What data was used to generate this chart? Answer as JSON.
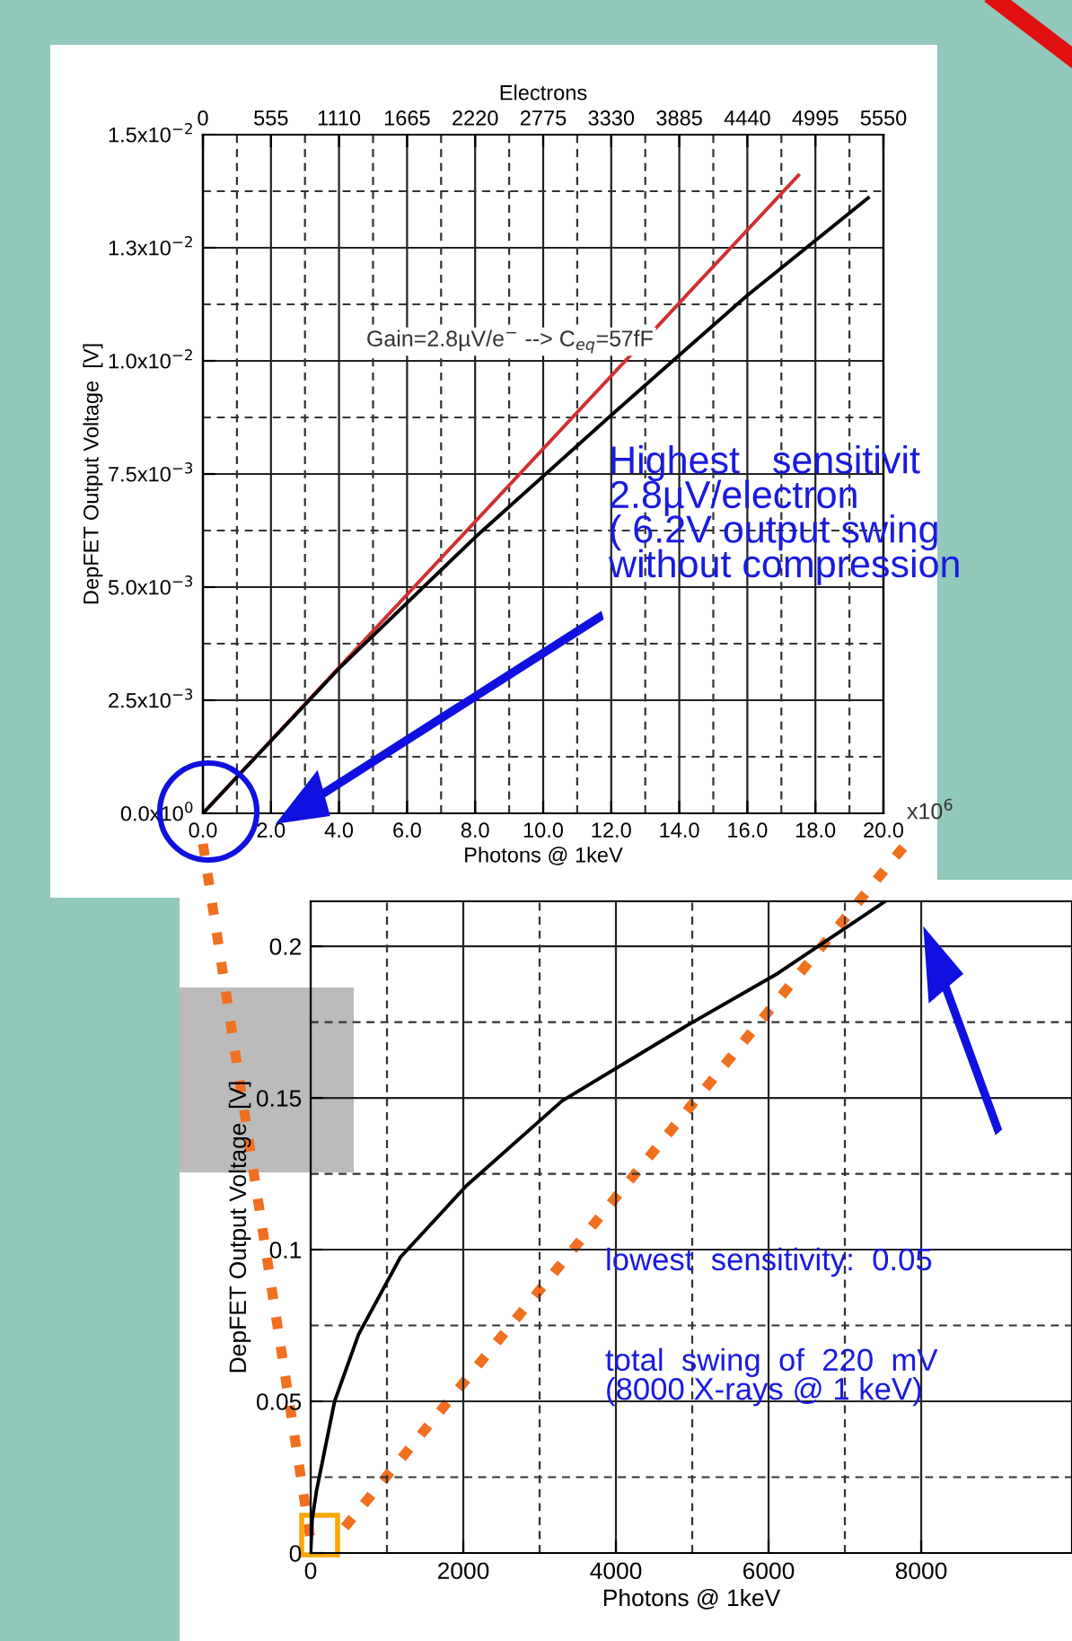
{
  "chart_data": [
    {
      "type": "line",
      "xlabel": "Photons @ 1keV",
      "ylabel": "DepFET Output Voltage  [V]",
      "x2label": "Electrons",
      "series": [
        {
          "color": "#d03030",
          "x": [
            0,
            17.5
          ],
          "values": [
            0,
            0.0141
          ]
        },
        {
          "color": "#000000",
          "x": [
            0,
            4,
            8,
            12,
            16,
            19.55
          ],
          "values": [
            0,
            0.0032,
            0.0061,
            0.0088,
            0.01145,
            0.0136
          ]
        }
      ],
      "xlim": [
        0,
        20
      ],
      "xticks": [
        {
          "value": 0,
          "label": "0.0"
        },
        {
          "value": 2,
          "label": "2.0"
        },
        {
          "value": 4,
          "label": "4.0"
        },
        {
          "value": 6,
          "label": "6.0"
        },
        {
          "value": 8,
          "label": "8.0"
        },
        {
          "value": 10,
          "label": "10.0"
        },
        {
          "value": 12,
          "label": "12.0"
        },
        {
          "value": 14,
          "label": "14.0"
        },
        {
          "value": 16,
          "label": "16.0"
        },
        {
          "value": 18,
          "label": "18.0"
        },
        {
          "value": 20,
          "label": "20.0"
        }
      ],
      "x2lim": [
        0,
        5550
      ],
      "x2ticks": [
        0,
        555,
        1110,
        1665,
        2220,
        2775,
        3330,
        3885,
        4440,
        4995,
        5550
      ],
      "ylim": [
        0,
        0.015
      ],
      "yticks": [
        {
          "value": 0,
          "label": "0.0x10$^{0}$"
        },
        {
          "value": 0.0025,
          "label": "2.5x10$^{−3}$"
        },
        {
          "value": 0.005,
          "label": "5.0x10$^{−3}$"
        },
        {
          "value": 0.0075,
          "label": "7.5x10$^{−3}$"
        },
        {
          "value": 0.01,
          "label": "1.0x10$^{−2}$"
        },
        {
          "value": 0.0125,
          "label": "1.3x10$^{−2}$"
        },
        {
          "value": 0.015,
          "label": "1.5x10$^{−2}$"
        }
      ],
      "grid": true,
      "line_style": "solid",
      "marker": "none",
      "annotations": [
        "Gain=2.8µV/e$^{−}$ --> C$_{eq}$=57fF",
        "Highest   sensitivit\n2.8µV/electron\n( 6.2V output swing\nwithout compression"
      ]
    },
    {
      "type": "line",
      "xlabel": "Photons @ 1keV",
      "ylabel": "DepFET Output Voltage  [V]",
      "series": [
        {
          "color": "#000000",
          "x": [
            0,
            20,
            78,
            314,
            627,
            1176,
            2039,
            3294,
            4941,
            6118,
            7529
          ],
          "values": [
            0,
            0.011,
            0.0207,
            0.05,
            0.072,
            0.0975,
            0.121,
            0.149,
            0.174,
            0.191,
            0.2148
          ]
        }
      ],
      "xlim": [
        0,
        9976
      ],
      "xticks": [
        0,
        2000,
        4000,
        6000,
        8000
      ],
      "ylim": [
        0,
        0.2148
      ],
      "yticks": [
        0,
        0.05,
        0.1,
        0.15,
        0.2
      ],
      "grid": true,
      "line_style": "solid",
      "marker": "none",
      "annotations": [
        "lowest  sensitivity:  0.05",
        "total  swing  of  220  mV\n(8000 X-rays @ 1 keV)",
        "x10$^{6}$"
      ]
    }
  ]
}
